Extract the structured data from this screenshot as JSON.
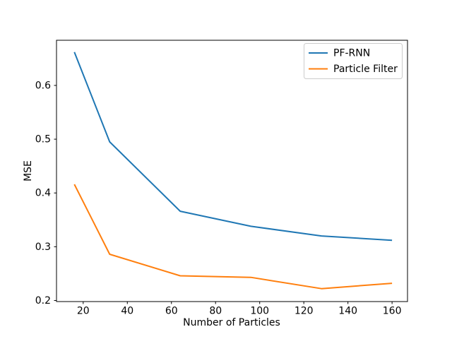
{
  "chart_data": {
    "type": "line",
    "title": "",
    "xlabel": "Number of Particles",
    "ylabel": "MSE",
    "x": [
      16,
      32,
      64,
      96,
      128,
      160
    ],
    "series": [
      {
        "name": "PF-RNN",
        "color": "#1f77b4",
        "values": [
          0.662,
          0.495,
          0.366,
          0.338,
          0.32,
          0.312
        ]
      },
      {
        "name": "Particle Filter",
        "color": "#ff7f0e",
        "values": [
          0.416,
          0.286,
          0.246,
          0.243,
          0.222,
          0.232
        ]
      }
    ],
    "xticks": [
      20,
      40,
      60,
      80,
      100,
      120,
      140,
      160
    ],
    "yticks": [
      0.2,
      0.3,
      0.4,
      0.5,
      0.6
    ],
    "xlim": [
      7.9,
      167.0
    ],
    "ylim": [
      0.198,
      0.684
    ],
    "grid": false,
    "legend_position": "upper right",
    "axis_color": "#000000",
    "background_color": "#ffffff"
  }
}
